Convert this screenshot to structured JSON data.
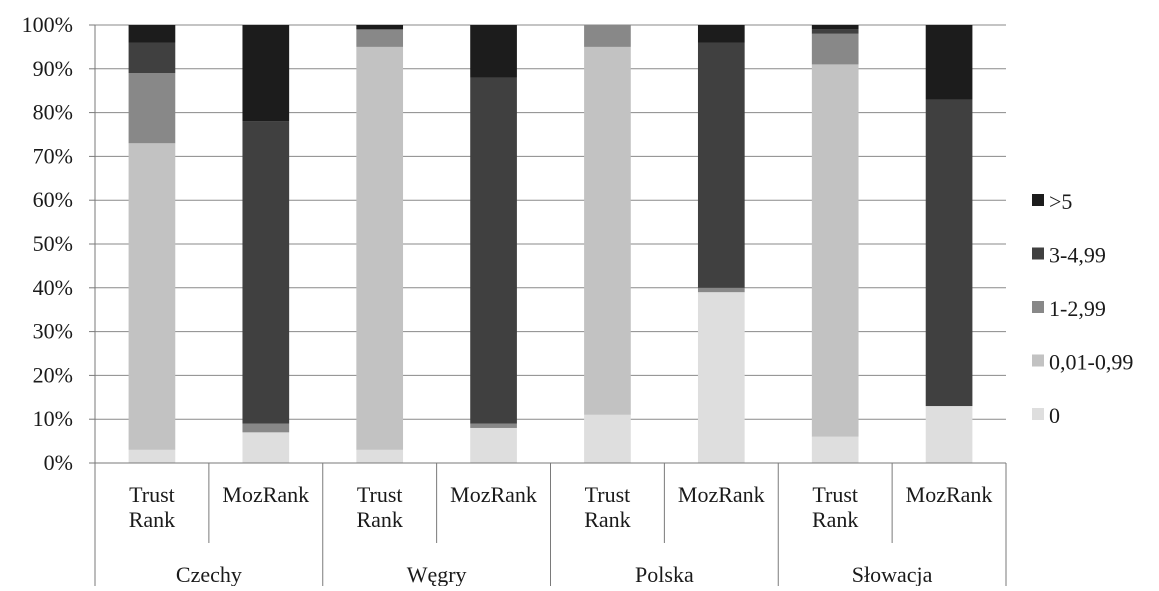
{
  "chart_data": {
    "type": "bar",
    "stacked": true,
    "percent": true,
    "y_tick_labels": [
      "0%",
      "10%",
      "20%",
      "30%",
      "40%",
      "50%",
      "60%",
      "70%",
      "80%",
      "90%",
      "100%"
    ],
    "ylim": [
      0,
      100
    ],
    "grid": true,
    "legend_position": "right",
    "groups": [
      {
        "label": "Czechy",
        "bars": [
          {
            "label": "Trust\nRank",
            "values": [
              3,
              70,
              16,
              7,
              4
            ]
          },
          {
            "label": "MozRank",
            "values": [
              7,
              0,
              2,
              69,
              22
            ]
          }
        ]
      },
      {
        "label": "Węgry",
        "bars": [
          {
            "label": "Trust\nRank",
            "values": [
              3,
              92,
              4,
              0,
              1
            ]
          },
          {
            "label": "MozRank",
            "values": [
              8,
              0,
              1,
              79,
              12
            ]
          }
        ]
      },
      {
        "label": "Polska",
        "bars": [
          {
            "label": "Trust\nRank",
            "values": [
              11,
              84,
              5,
              0,
              0
            ]
          },
          {
            "label": "MozRank",
            "values": [
              39,
              0,
              1,
              56,
              4
            ]
          }
        ]
      },
      {
        "label": "Słowacja",
        "bars": [
          {
            "label": "Trust\nRank",
            "values": [
              6,
              85,
              7,
              1,
              1
            ]
          },
          {
            "label": "MozRank",
            "values": [
              13,
              0,
              0,
              70,
              17
            ]
          }
        ]
      }
    ],
    "series": [
      {
        "name": "0",
        "color": "#dedede"
      },
      {
        "name": "0,01-0,99",
        "color": "#c2c2c2"
      },
      {
        "name": "1-2,99",
        "color": "#888888"
      },
      {
        "name": "3-4,99",
        "color": "#404040"
      },
      {
        "name": ">5",
        "color": "#1c1c1c"
      }
    ],
    "legend_order": [
      ">5",
      "3-4,99",
      "1-2,99",
      "0,01-0,99",
      "0"
    ]
  }
}
